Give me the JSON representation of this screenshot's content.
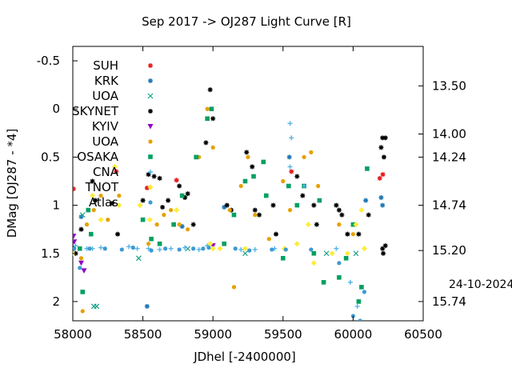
{
  "chart_data": {
    "type": "scatter",
    "title": "Sep 2017 ->   OJ287 Light Curve [R]",
    "xlabel": "JDhel [-2400000]",
    "ylabel": "DMag [OJ287 - *4]",
    "xlim": [
      58000,
      60500
    ],
    "ylim": [
      2.2,
      -0.65
    ],
    "x_ticks": [
      58000,
      58500,
      59000,
      59500,
      60000,
      60500
    ],
    "y_ticks": [
      -0.5,
      0,
      0.5,
      1,
      1.5,
      2
    ],
    "y_tick_labels": [
      "-0.5",
      "0",
      "0.5",
      "1",
      "1.5",
      "2"
    ],
    "y2_ticks": [
      {
        "label": "13.50",
        "y": -0.24
      },
      {
        "label": "14.00",
        "y": 0.26
      },
      {
        "label": "14.24",
        "y": 0.5
      },
      {
        "label": "14.74",
        "y": 1.0
      },
      {
        "label": "15.20",
        "y": 1.47
      },
      {
        "label": "15.74",
        "y": 2.0
      }
    ],
    "date_label": "24-10-2024",
    "grid": false,
    "legend_position": "top-left",
    "series": [
      {
        "name": "SUH",
        "color": "#e41a1c",
        "marker": "star",
        "points": [
          [
            58005,
            0.83
          ],
          [
            58310,
            0.65
          ],
          [
            58530,
            0.82
          ],
          [
            58740,
            0.74
          ],
          [
            59560,
            0.65
          ],
          [
            60190,
            0.72
          ],
          [
            60212,
            0.68
          ]
        ]
      },
      {
        "name": "KRK",
        "color": "#1f77b4",
        "marker": "star",
        "points": [
          [
            58060,
            1.12
          ],
          [
            58530,
            2.05
          ],
          [
            58780,
            1.22
          ],
          [
            59080,
            1.02
          ],
          [
            59545,
            0.5
          ],
          [
            60090,
            0.95
          ],
          [
            60200,
            0.92
          ],
          [
            60210,
            1.0
          ]
        ]
      },
      {
        "name": "UOA",
        "color": "#16a085",
        "marker": "x",
        "points": [
          [
            58070,
            1.1
          ],
          [
            58150,
            2.05
          ],
          [
            58170,
            2.05
          ],
          [
            58470,
            1.55
          ],
          [
            58820,
            1.45
          ],
          [
            59230,
            1.5
          ],
          [
            59810,
            1.5
          ],
          [
            60020,
            1.5
          ]
        ]
      },
      {
        "name": "SKYNET",
        "color": "#000000",
        "marker": "star",
        "points": [
          [
            58005,
            1.45
          ],
          [
            58020,
            1.5
          ],
          [
            58060,
            1.25
          ],
          [
            58140,
            0.75
          ],
          [
            58160,
            0.95
          ],
          [
            58280,
            0.98
          ],
          [
            58320,
            1.3
          ],
          [
            58500,
            0.95
          ],
          [
            58540,
            0.68
          ],
          [
            58580,
            0.7
          ],
          [
            58620,
            0.72
          ],
          [
            58640,
            1.02
          ],
          [
            58680,
            0.95
          ],
          [
            58760,
            0.8
          ],
          [
            58800,
            0.92
          ],
          [
            58820,
            0.88
          ],
          [
            58860,
            1.2
          ],
          [
            58950,
            0.35
          ],
          [
            58980,
            -0.2
          ],
          [
            59000,
            0.1
          ],
          [
            59100,
            1.0
          ],
          [
            59130,
            1.05
          ],
          [
            59240,
            0.45
          ],
          [
            59280,
            0.6
          ],
          [
            59300,
            1.05
          ],
          [
            59330,
            1.1
          ],
          [
            59430,
            1.0
          ],
          [
            59450,
            1.3
          ],
          [
            59600,
            0.7
          ],
          [
            59640,
            0.9
          ],
          [
            59720,
            1.0
          ],
          [
            59740,
            1.2
          ],
          [
            59880,
            1.0
          ],
          [
            59900,
            1.05
          ],
          [
            59920,
            1.1
          ],
          [
            59960,
            1.3
          ],
          [
            60040,
            1.3
          ],
          [
            60110,
            1.1
          ],
          [
            60200,
            0.4
          ],
          [
            60210,
            0.3
          ],
          [
            60220,
            0.5
          ],
          [
            60230,
            0.3
          ],
          [
            60210,
            1.45
          ],
          [
            60215,
            1.5
          ],
          [
            60230,
            1.42
          ]
        ]
      },
      {
        "name": "KYIV",
        "color": "#8e00c8",
        "marker": "triangle",
        "points": [
          [
            58005,
            1.32
          ],
          [
            58010,
            1.38
          ],
          [
            58060,
            1.6
          ],
          [
            58080,
            1.68
          ],
          [
            59000,
            1.42
          ]
        ]
      },
      {
        "name": "UOA",
        "color": "#e6a000",
        "marker": "circle",
        "points": [
          [
            58060,
            1.55
          ],
          [
            58070,
            2.1
          ],
          [
            58100,
            1.2
          ],
          [
            58150,
            1.05
          ],
          [
            58200,
            0.9
          ],
          [
            58250,
            1.15
          ],
          [
            58330,
            0.9
          ],
          [
            58540,
            1.4
          ],
          [
            58600,
            1.2
          ],
          [
            58650,
            1.1
          ],
          [
            58700,
            1.05
          ],
          [
            58760,
            1.2
          ],
          [
            58820,
            1.25
          ],
          [
            58900,
            0.5
          ],
          [
            58960,
            0.0
          ],
          [
            59000,
            0.4
          ],
          [
            59120,
            1.05
          ],
          [
            59150,
            1.85
          ],
          [
            59200,
            0.8
          ],
          [
            59250,
            0.5
          ],
          [
            59300,
            1.1
          ],
          [
            59400,
            1.35
          ],
          [
            59500,
            0.75
          ],
          [
            59550,
            1.05
          ],
          [
            59650,
            0.5
          ],
          [
            59700,
            0.45
          ],
          [
            59750,
            0.8
          ],
          [
            59900,
            1.2
          ],
          [
            60000,
            1.3
          ]
        ]
      },
      {
        "name": "OSAKA",
        "color": "#00a060",
        "marker": "square",
        "points": [
          [
            58050,
            1.45
          ],
          [
            58070,
            1.9
          ],
          [
            58110,
            1.05
          ],
          [
            58130,
            1.3
          ],
          [
            58500,
            1.15
          ],
          [
            58560,
            1.35
          ],
          [
            58620,
            1.4
          ],
          [
            58720,
            1.2
          ],
          [
            58780,
            0.9
          ],
          [
            58880,
            0.5
          ],
          [
            58960,
            0.1
          ],
          [
            58990,
            0.0
          ],
          [
            59080,
            1.4
          ],
          [
            59150,
            1.1
          ],
          [
            59230,
            0.75
          ],
          [
            59290,
            0.7
          ],
          [
            59360,
            0.55
          ],
          [
            59380,
            0.9
          ],
          [
            59500,
            1.55
          ],
          [
            59540,
            0.8
          ],
          [
            59600,
            1.0
          ],
          [
            59650,
            0.8
          ],
          [
            59720,
            1.5
          ],
          [
            59760,
            0.95
          ],
          [
            59790,
            1.8
          ],
          [
            59900,
            1.75
          ],
          [
            59950,
            1.55
          ],
          [
            60000,
            1.2
          ],
          [
            60040,
            2.0
          ],
          [
            60060,
            1.85
          ],
          [
            60100,
            0.62
          ]
        ]
      },
      {
        "name": "CNA",
        "color": "#56b4e9",
        "marker": "plus",
        "points": [
          [
            58020,
            1.42
          ],
          [
            58100,
            1.45
          ],
          [
            58140,
            1.45
          ],
          [
            58200,
            1.44
          ],
          [
            58400,
            1.43
          ],
          [
            58460,
            1.45
          ],
          [
            58540,
            1.45
          ],
          [
            58620,
            1.46
          ],
          [
            58700,
            1.45
          ],
          [
            58800,
            1.44
          ],
          [
            58900,
            1.46
          ],
          [
            58960,
            1.42
          ],
          [
            59200,
            1.46
          ],
          [
            59300,
            1.46
          ],
          [
            59440,
            1.45
          ],
          [
            59550,
            0.15
          ],
          [
            59560,
            0.3
          ],
          [
            59550,
            0.6
          ],
          [
            59650,
            0.8
          ],
          [
            59880,
            1.45
          ],
          [
            59980,
            1.8
          ],
          [
            60030,
            2.05
          ]
        ]
      },
      {
        "name": "TNOT",
        "color": "#ffeb3b",
        "marker": "diamond",
        "points": [
          [
            58000,
            1.5
          ],
          [
            58140,
            0.9
          ],
          [
            58200,
            1.15
          ],
          [
            58300,
            0.6
          ],
          [
            58330,
            1.0
          ],
          [
            58480,
            1.0
          ],
          [
            58550,
            1.15
          ],
          [
            58740,
            1.05
          ],
          [
            58980,
            1.4
          ],
          [
            59000,
            1.45
          ],
          [
            59050,
            1.45
          ],
          [
            59230,
            1.45
          ],
          [
            59510,
            1.45
          ],
          [
            59600,
            1.4
          ],
          [
            59680,
            1.2
          ],
          [
            59720,
            1.6
          ],
          [
            59850,
            1.5
          ],
          [
            59960,
            1.5
          ],
          [
            60020,
            1.2
          ],
          [
            60060,
            1.05
          ],
          [
            60080,
            1.45
          ]
        ]
      },
      {
        "name": "Atlas",
        "color": "#3d9ad1",
        "marker": "circle",
        "points": [
          [
            58010,
            1.45
          ],
          [
            58050,
            1.65
          ],
          [
            58120,
            1.45
          ],
          [
            58230,
            1.45
          ],
          [
            58350,
            1.46
          ],
          [
            58430,
            1.44
          ],
          [
            58560,
            1.47
          ],
          [
            58660,
            1.45
          ],
          [
            58760,
            1.46
          ],
          [
            58860,
            1.45
          ],
          [
            58930,
            1.45
          ],
          [
            58970,
            1.44
          ],
          [
            59160,
            1.45
          ],
          [
            59260,
            1.47
          ],
          [
            59420,
            1.46
          ],
          [
            59520,
            1.46
          ],
          [
            59700,
            1.46
          ],
          [
            59900,
            1.6
          ],
          [
            60000,
            2.15
          ],
          [
            60050,
            2.2
          ],
          [
            60080,
            1.9
          ]
        ]
      }
    ]
  }
}
